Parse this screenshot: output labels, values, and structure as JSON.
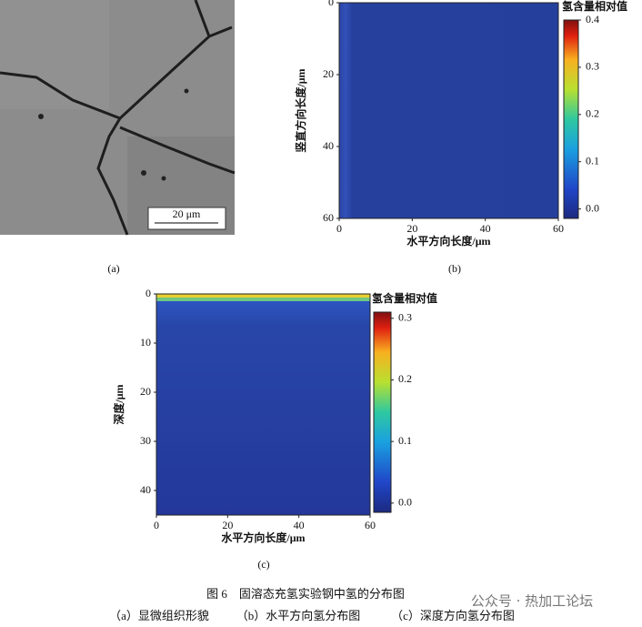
{
  "panel_a": {
    "scale_bar": "20 μm",
    "label": "(a)"
  },
  "panel_b": {
    "xlabel": "水平方向长度/μm",
    "ylabel": "竖直方向长度/μm",
    "xlim": [
      0,
      60
    ],
    "ylim": [
      0,
      60
    ],
    "xticks": [
      0,
      20,
      40,
      60
    ],
    "yticks": [
      0,
      20,
      40,
      60
    ],
    "colorbar_title": "氢含量相对值",
    "clim": [
      -0.02,
      0.4
    ],
    "colorbar_ticks": [
      {
        "value": 0,
        "label": "0.0"
      },
      0.1,
      0.2,
      0.3,
      0.4
    ],
    "label": "(b)"
  },
  "panel_c": {
    "xlabel": "水平方向长度/μm",
    "ylabel": "深度/μm",
    "xlim": [
      0,
      60
    ],
    "ylim": [
      0,
      45
    ],
    "xticks": [
      0,
      20,
      40,
      60
    ],
    "yticks": [
      0,
      10,
      20,
      30,
      40
    ],
    "colorbar_title": "氢含量相对值",
    "clim": [
      -0.015,
      0.31
    ],
    "colorbar_ticks": [
      {
        "value": 0,
        "label": "0.0"
      },
      0.1,
      0.2,
      0.3
    ],
    "label": "(c)"
  },
  "caption": "图 6　固溶态充氢实验钢中氢的分布图",
  "subcaptions": [
    "（a）显微组织形貌",
    "（b）水平方向氢分布图",
    "（c）深度方向氢分布图"
  ],
  "watermark": "公众号 · 热加工论坛"
}
